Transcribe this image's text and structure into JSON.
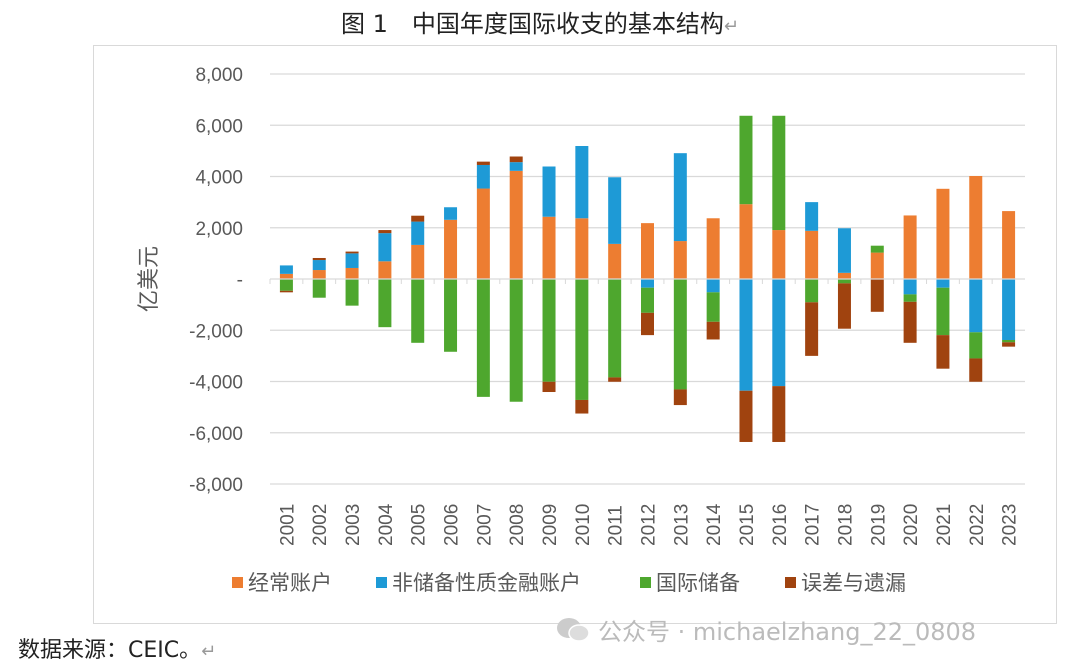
{
  "title": "图 1　中国年度国际收支的基本结构",
  "return_mark": "↵",
  "source": "数据来源：CEIC。",
  "watermark": "公众号 · michaelzhang_22_0808",
  "chart_data": {
    "type": "bar",
    "stacked": true,
    "title": "",
    "ylabel": "亿美元",
    "xlabel": "",
    "ylim": [
      -8000,
      8000
    ],
    "yticks": [
      8000,
      6000,
      4000,
      2000,
      0,
      -2000,
      -4000,
      -6000,
      -8000
    ],
    "ytick_labels": [
      "8,000",
      "6,000",
      "4,000",
      "2,000",
      "-",
      "-2,000",
      "-4,000",
      "-6,000",
      "-8,000"
    ],
    "grid": true,
    "legend_position": "bottom",
    "categories": [
      "2001",
      "2002",
      "2003",
      "2004",
      "2005",
      "2006",
      "2007",
      "2008",
      "2009",
      "2010",
      "2011",
      "2012",
      "2013",
      "2014",
      "2015",
      "2016",
      "2017",
      "2018",
      "2019",
      "2020",
      "2021",
      "2022",
      "2023"
    ],
    "series": [
      {
        "name": "经常账户",
        "color": "#ED7D31",
        "values": [
          200,
          350,
          430,
          690,
          1330,
          2310,
          3530,
          4220,
          2430,
          2370,
          1370,
          2180,
          1480,
          2370,
          2920,
          1910,
          1880,
          240,
          1030,
          2480,
          3520,
          4020,
          2650
        ]
      },
      {
        "name": "非储备性质金融账户",
        "color": "#1E9AD6",
        "values": [
          330,
          390,
          570,
          1100,
          910,
          490,
          920,
          340,
          1960,
          2820,
          2600,
          -340,
          3430,
          -520,
          -4360,
          -4180,
          1120,
          1740,
          0,
          -600,
          -340,
          -2080,
          -2380
        ]
      },
      {
        "name": "国际储备",
        "color": "#4EA72E",
        "values": [
          -460,
          -730,
          -1040,
          -1880,
          -2490,
          -2840,
          -4600,
          -4790,
          -4010,
          -4720,
          -3840,
          -980,
          -4310,
          -1150,
          3450,
          4460,
          -910,
          -170,
          270,
          -290,
          -1850,
          -1020,
          -90
        ]
      },
      {
        "name": "误差与遗漏",
        "color": "#A0430F",
        "values": [
          -60,
          80,
          70,
          120,
          230,
          0,
          130,
          220,
          -400,
          -530,
          -170,
          -870,
          -610,
          -690,
          -2000,
          -2180,
          -2090,
          -1770,
          -1280,
          -1600,
          -1310,
          -910,
          -170
        ]
      }
    ]
  }
}
